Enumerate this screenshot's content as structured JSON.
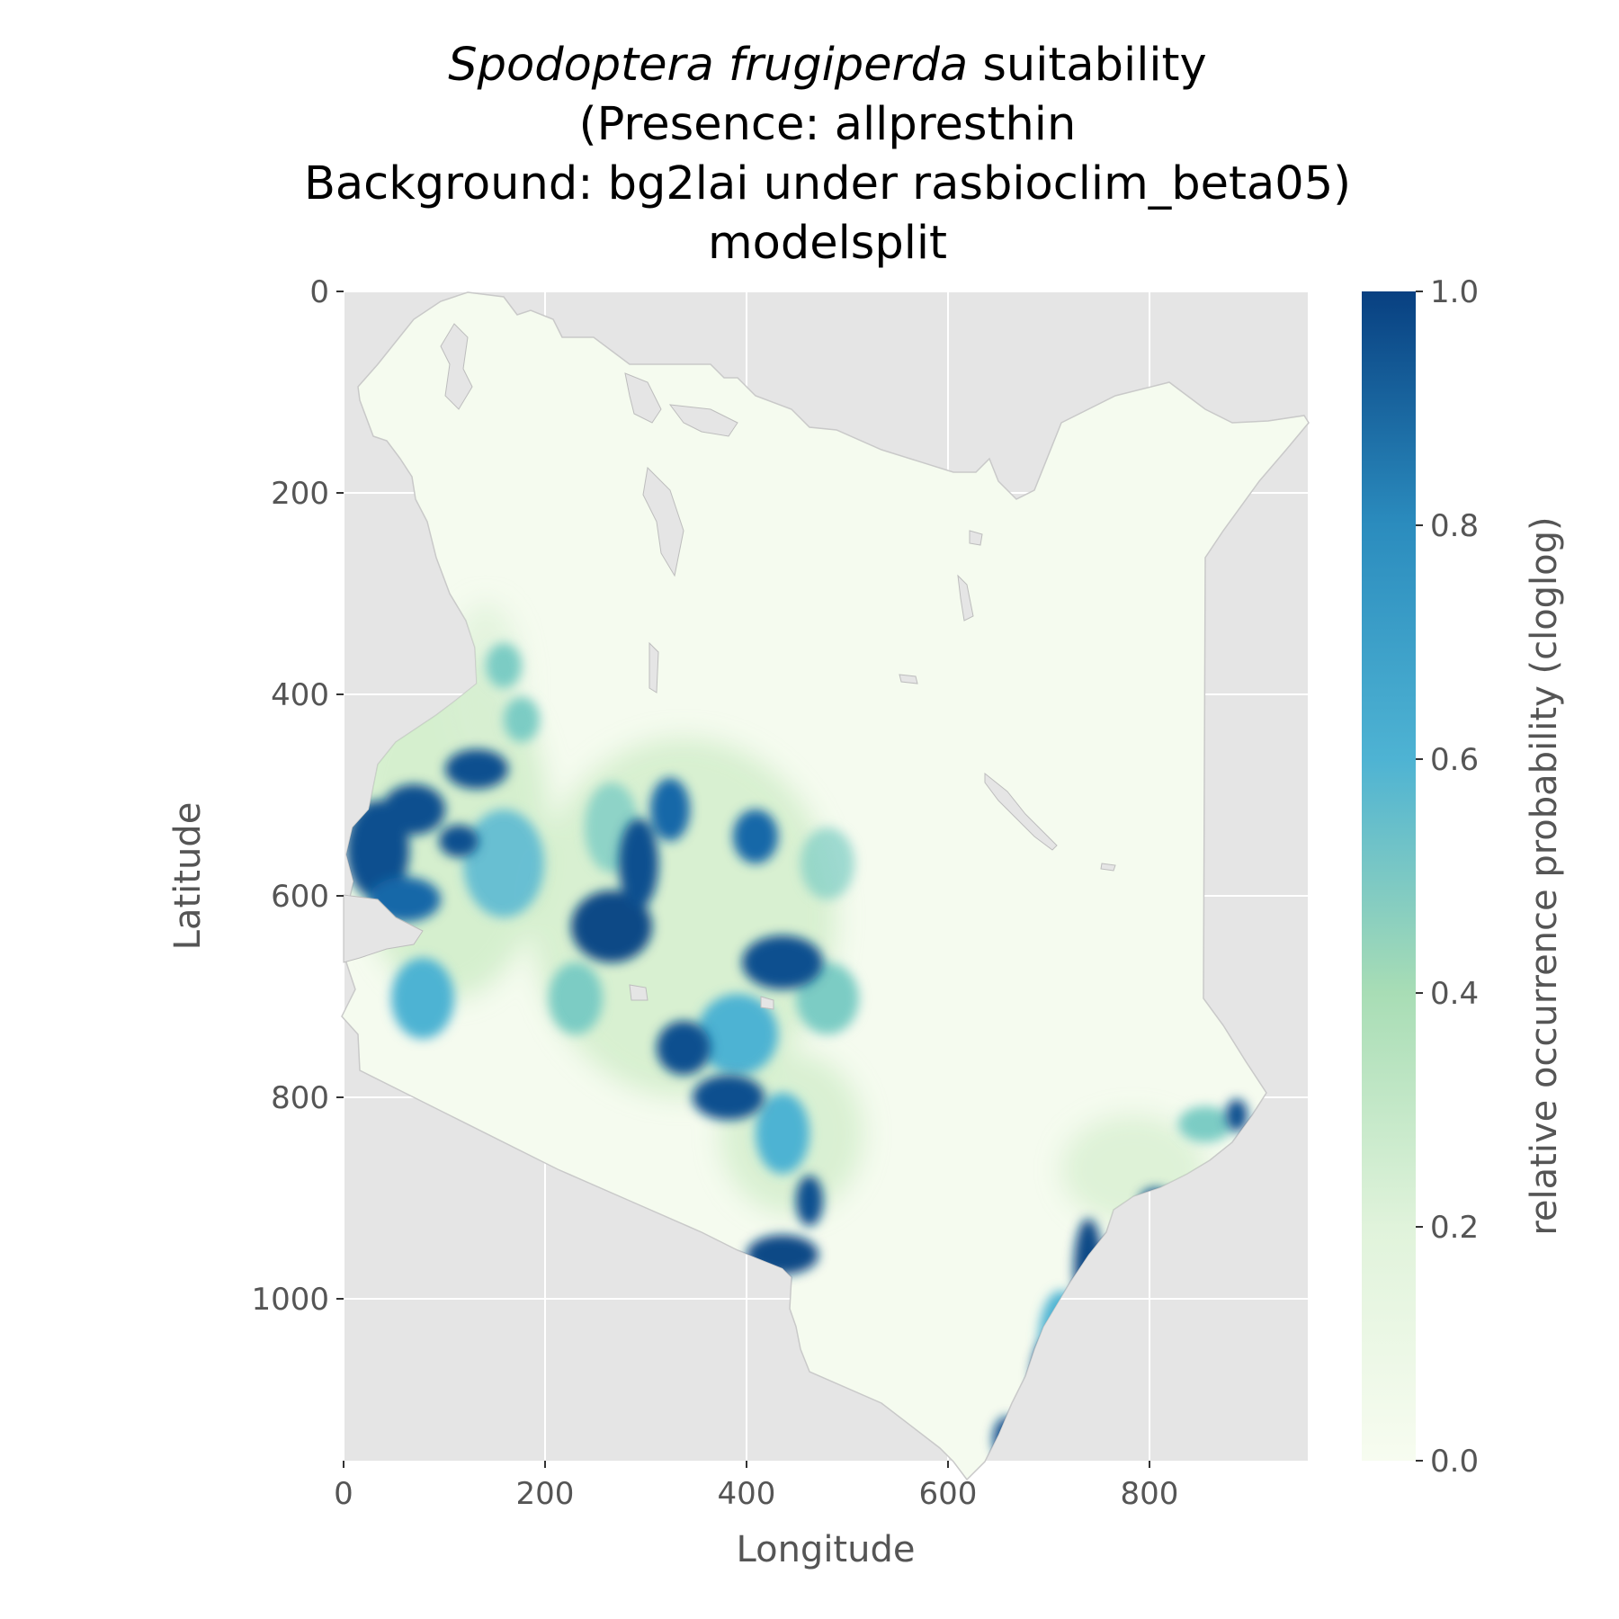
{
  "title": {
    "species": "Spodoptera frugiperda",
    "line1_rest": " suitability",
    "line2": "(Presence: allpresthin",
    "line3": "Background: bg2lai under rasbioclim_beta05)",
    "line4": "modelsplit"
  },
  "axes": {
    "xlabel": "Longitude",
    "ylabel": "Latitude",
    "x_ticks": [
      "0",
      "200",
      "400",
      "600",
      "800"
    ],
    "y_ticks": [
      "0",
      "200",
      "400",
      "600",
      "800",
      "1000"
    ]
  },
  "colorbar": {
    "label": "relative occurrence probability (cloglog)",
    "ticks": [
      "0.0",
      "0.2",
      "0.4",
      "0.6",
      "0.8",
      "1.0"
    ],
    "colors": [
      "#f7fcf0",
      "#ccebc5",
      "#7bccc4",
      "#2b8cbe",
      "#08589e",
      "#084081"
    ]
  },
  "colors": {
    "panel_bg": "#e5e5e5",
    "grid": "#ffffff",
    "land_low": "#f5fbef",
    "high": "#084b8a",
    "mid": "#2c7fb8",
    "low": "#a8ddb5"
  }
}
